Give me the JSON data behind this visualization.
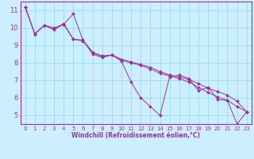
{
  "xlabel": "Windchill (Refroidissement éolien,°C)",
  "xlim": [
    -0.5,
    23.5
  ],
  "ylim": [
    4.5,
    11.5
  ],
  "yticks": [
    5,
    6,
    7,
    8,
    9,
    10,
    11
  ],
  "xticks": [
    0,
    1,
    2,
    3,
    4,
    5,
    6,
    7,
    8,
    9,
    10,
    11,
    12,
    13,
    14,
    15,
    16,
    17,
    18,
    19,
    20,
    21,
    22,
    23
  ],
  "bg_color": "#cceeff",
  "grid_color": "#99dddd",
  "line_color": "#993399",
  "spine_color": "#993399",
  "series": [
    [
      11.2,
      9.65,
      10.15,
      10.0,
      10.2,
      10.8,
      9.3,
      8.5,
      8.3,
      8.45,
      8.1,
      6.9,
      6.0,
      5.5,
      5.0,
      7.2,
      7.3,
      7.1,
      6.4,
      6.6,
      5.9,
      5.85,
      4.5,
      5.2
    ],
    [
      11.2,
      9.65,
      10.15,
      9.9,
      10.25,
      9.35,
      9.3,
      8.6,
      8.4,
      8.45,
      8.2,
      8.05,
      7.9,
      7.75,
      7.5,
      7.3,
      7.2,
      7.05,
      6.8,
      6.55,
      6.35,
      6.15,
      5.8,
      5.2
    ],
    [
      11.2,
      9.65,
      10.15,
      9.9,
      10.2,
      9.35,
      9.25,
      8.6,
      8.35,
      8.45,
      8.15,
      8.0,
      7.85,
      7.65,
      7.4,
      7.25,
      7.1,
      6.9,
      6.6,
      6.3,
      6.05,
      5.85,
      5.5,
      5.2
    ]
  ]
}
